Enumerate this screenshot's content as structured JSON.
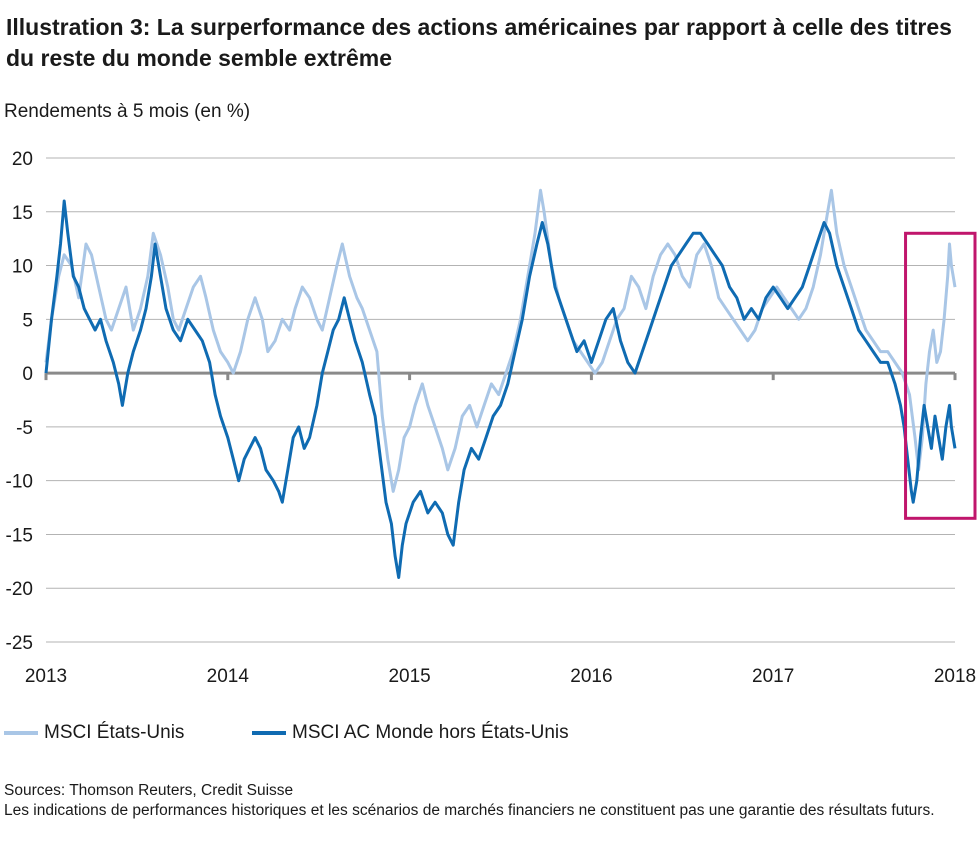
{
  "title": "Illustration 3: La surperformance des actions américaines par rapport à celle des titres du reste du monde semble extrême",
  "subtitle": "Rendements à 5 mois (en %)",
  "footer": {
    "sources": "Sources: Thomson Reuters, Credit Suisse",
    "disclaimer": "Les indications de performances historiques et les scénarios de marchés financiers ne constituent pas une garantie des résultats futurs."
  },
  "colors": {
    "us": "#a9c6e6",
    "world": "#0f6bb2",
    "highlight": "#c0166c",
    "grid": "#b3b3b3",
    "zero": "#8a8a8a"
  },
  "chart_data": {
    "type": "line",
    "title": "",
    "xlabel": "",
    "ylabel": "Rendements à 5 mois (en %)",
    "xlim": [
      2013.0,
      2018.0
    ],
    "ylim": [
      -25,
      20
    ],
    "y_ticks": [
      20,
      15,
      10,
      5,
      0,
      -5,
      -10,
      -15,
      -20,
      -25
    ],
    "x_ticks": [
      "2013",
      "2014",
      "2015",
      "2016",
      "2017",
      "2018"
    ],
    "grid": true,
    "legend": "bottom",
    "highlight_range": {
      "x": [
        2017.75,
        2018.0
      ],
      "y": [
        -13.5,
        13
      ]
    },
    "series": [
      {
        "name": "MSCI États-Unis",
        "color": "#a9c6e6",
        "points": [
          [
            2013.0,
            1
          ],
          [
            2013.03,
            5
          ],
          [
            2013.07,
            9
          ],
          [
            2013.1,
            11
          ],
          [
            2013.14,
            10
          ],
          [
            2013.18,
            7
          ],
          [
            2013.22,
            12
          ],
          [
            2013.25,
            11
          ],
          [
            2013.29,
            8
          ],
          [
            2013.33,
            5
          ],
          [
            2013.36,
            4
          ],
          [
            2013.4,
            6
          ],
          [
            2013.44,
            8
          ],
          [
            2013.48,
            4
          ],
          [
            2013.52,
            6
          ],
          [
            2013.56,
            9
          ],
          [
            2013.59,
            13
          ],
          [
            2013.63,
            11
          ],
          [
            2013.67,
            8
          ],
          [
            2013.7,
            5
          ],
          [
            2013.73,
            4
          ],
          [
            2013.77,
            6
          ],
          [
            2013.81,
            8
          ],
          [
            2013.85,
            9
          ],
          [
            2013.88,
            7
          ],
          [
            2013.92,
            4
          ],
          [
            2013.96,
            2
          ],
          [
            2014.0,
            1
          ],
          [
            2014.03,
            0
          ],
          [
            2014.07,
            2
          ],
          [
            2014.11,
            5
          ],
          [
            2014.15,
            7
          ],
          [
            2014.19,
            5
          ],
          [
            2014.22,
            2
          ],
          [
            2014.26,
            3
          ],
          [
            2014.3,
            5
          ],
          [
            2014.34,
            4
          ],
          [
            2014.37,
            6
          ],
          [
            2014.41,
            8
          ],
          [
            2014.45,
            7
          ],
          [
            2014.49,
            5
          ],
          [
            2014.52,
            4
          ],
          [
            2014.56,
            7
          ],
          [
            2014.6,
            10
          ],
          [
            2014.63,
            12
          ],
          [
            2014.67,
            9
          ],
          [
            2014.71,
            7
          ],
          [
            2014.74,
            6
          ],
          [
            2014.78,
            4
          ],
          [
            2014.82,
            2
          ],
          [
            2014.85,
            -4
          ],
          [
            2014.88,
            -8
          ],
          [
            2014.91,
            -11
          ],
          [
            2014.94,
            -9
          ],
          [
            2014.97,
            -6
          ],
          [
            2015.0,
            -5
          ],
          [
            2015.03,
            -3
          ],
          [
            2015.07,
            -1
          ],
          [
            2015.1,
            -3
          ],
          [
            2015.14,
            -5
          ],
          [
            2015.18,
            -7
          ],
          [
            2015.21,
            -9
          ],
          [
            2015.25,
            -7
          ],
          [
            2015.29,
            -4
          ],
          [
            2015.33,
            -3
          ],
          [
            2015.37,
            -5
          ],
          [
            2015.41,
            -3
          ],
          [
            2015.45,
            -1
          ],
          [
            2015.49,
            -2
          ],
          [
            2015.53,
            0
          ],
          [
            2015.57,
            2
          ],
          [
            2015.61,
            5
          ],
          [
            2015.65,
            9
          ],
          [
            2015.69,
            13
          ],
          [
            2015.72,
            17
          ],
          [
            2015.74,
            15
          ],
          [
            2015.78,
            10
          ],
          [
            2015.82,
            7
          ],
          [
            2015.86,
            5
          ],
          [
            2015.9,
            3
          ],
          [
            2015.94,
            2
          ],
          [
            2015.98,
            1
          ],
          [
            2016.02,
            0
          ],
          [
            2016.06,
            1
          ],
          [
            2016.1,
            3
          ],
          [
            2016.14,
            5
          ],
          [
            2016.18,
            6
          ],
          [
            2016.22,
            9
          ],
          [
            2016.26,
            8
          ],
          [
            2016.3,
            6
          ],
          [
            2016.34,
            9
          ],
          [
            2016.38,
            11
          ],
          [
            2016.42,
            12
          ],
          [
            2016.46,
            11
          ],
          [
            2016.5,
            9
          ],
          [
            2016.54,
            8
          ],
          [
            2016.58,
            11
          ],
          [
            2016.62,
            12
          ],
          [
            2016.66,
            10
          ],
          [
            2016.7,
            7
          ],
          [
            2016.74,
            6
          ],
          [
            2016.78,
            5
          ],
          [
            2016.82,
            4
          ],
          [
            2016.86,
            3
          ],
          [
            2016.9,
            4
          ],
          [
            2016.94,
            6
          ],
          [
            2016.98,
            7
          ],
          [
            2017.02,
            8
          ],
          [
            2017.06,
            7
          ],
          [
            2017.1,
            6
          ],
          [
            2017.14,
            5
          ],
          [
            2017.18,
            6
          ],
          [
            2017.22,
            8
          ],
          [
            2017.26,
            11
          ],
          [
            2017.3,
            15
          ],
          [
            2017.32,
            17
          ],
          [
            2017.35,
            13
          ],
          [
            2017.39,
            10
          ],
          [
            2017.43,
            8
          ],
          [
            2017.47,
            6
          ],
          [
            2017.51,
            4
          ],
          [
            2017.55,
            3
          ],
          [
            2017.59,
            2
          ],
          [
            2017.63,
            2
          ],
          [
            2017.67,
            1
          ],
          [
            2017.71,
            0
          ],
          [
            2017.75,
            -2
          ],
          [
            2017.78,
            -6
          ],
          [
            2017.8,
            -9
          ],
          [
            2017.82,
            -6
          ],
          [
            2017.84,
            -1
          ],
          [
            2017.86,
            2
          ],
          [
            2017.88,
            4
          ],
          [
            2017.9,
            1
          ],
          [
            2017.92,
            2
          ],
          [
            2017.94,
            5
          ],
          [
            2017.96,
            9
          ],
          [
            2017.97,
            12
          ],
          [
            2017.98,
            10
          ],
          [
            2017.99,
            9
          ],
          [
            2018.0,
            8
          ]
        ]
      },
      {
        "name": "MSCI AC Monde hors États-Unis",
        "color": "#0f6bb2",
        "points": [
          [
            2013.0,
            0
          ],
          [
            2013.03,
            5
          ],
          [
            2013.06,
            9
          ],
          [
            2013.08,
            12
          ],
          [
            2013.1,
            16
          ],
          [
            2013.12,
            13
          ],
          [
            2013.15,
            9
          ],
          [
            2013.18,
            8
          ],
          [
            2013.21,
            6
          ],
          [
            2013.24,
            5
          ],
          [
            2013.27,
            4
          ],
          [
            2013.3,
            5
          ],
          [
            2013.33,
            3
          ],
          [
            2013.37,
            1
          ],
          [
            2013.4,
            -1
          ],
          [
            2013.42,
            -3
          ],
          [
            2013.45,
            0
          ],
          [
            2013.48,
            2
          ],
          [
            2013.52,
            4
          ],
          [
            2013.55,
            6
          ],
          [
            2013.58,
            9
          ],
          [
            2013.6,
            12
          ],
          [
            2013.63,
            9
          ],
          [
            2013.66,
            6
          ],
          [
            2013.7,
            4
          ],
          [
            2013.74,
            3
          ],
          [
            2013.78,
            5
          ],
          [
            2013.82,
            4
          ],
          [
            2013.86,
            3
          ],
          [
            2013.9,
            1
          ],
          [
            2013.93,
            -2
          ],
          [
            2013.96,
            -4
          ],
          [
            2014.0,
            -6
          ],
          [
            2014.03,
            -8
          ],
          [
            2014.06,
            -10
          ],
          [
            2014.09,
            -8
          ],
          [
            2014.12,
            -7
          ],
          [
            2014.15,
            -6
          ],
          [
            2014.18,
            -7
          ],
          [
            2014.21,
            -9
          ],
          [
            2014.25,
            -10
          ],
          [
            2014.28,
            -11
          ],
          [
            2014.3,
            -12
          ],
          [
            2014.33,
            -9
          ],
          [
            2014.36,
            -6
          ],
          [
            2014.39,
            -5
          ],
          [
            2014.42,
            -7
          ],
          [
            2014.45,
            -6
          ],
          [
            2014.49,
            -3
          ],
          [
            2014.52,
            0
          ],
          [
            2014.55,
            2
          ],
          [
            2014.58,
            4
          ],
          [
            2014.61,
            5
          ],
          [
            2014.64,
            7
          ],
          [
            2014.67,
            5
          ],
          [
            2014.7,
            3
          ],
          [
            2014.74,
            1
          ],
          [
            2014.78,
            -2
          ],
          [
            2014.81,
            -4
          ],
          [
            2014.84,
            -8
          ],
          [
            2014.87,
            -12
          ],
          [
            2014.9,
            -14
          ],
          [
            2014.92,
            -17
          ],
          [
            2014.94,
            -19
          ],
          [
            2014.96,
            -16
          ],
          [
            2014.98,
            -14
          ],
          [
            2015.02,
            -12
          ],
          [
            2015.06,
            -11
          ],
          [
            2015.1,
            -13
          ],
          [
            2015.14,
            -12
          ],
          [
            2015.18,
            -13
          ],
          [
            2015.21,
            -15
          ],
          [
            2015.24,
            -16
          ],
          [
            2015.27,
            -12
          ],
          [
            2015.3,
            -9
          ],
          [
            2015.34,
            -7
          ],
          [
            2015.38,
            -8
          ],
          [
            2015.42,
            -6
          ],
          [
            2015.46,
            -4
          ],
          [
            2015.5,
            -3
          ],
          [
            2015.54,
            -1
          ],
          [
            2015.58,
            2
          ],
          [
            2015.62,
            5
          ],
          [
            2015.66,
            9
          ],
          [
            2015.7,
            12
          ],
          [
            2015.73,
            14
          ],
          [
            2015.76,
            12
          ],
          [
            2015.8,
            8
          ],
          [
            2015.84,
            6
          ],
          [
            2015.88,
            4
          ],
          [
            2015.92,
            2
          ],
          [
            2015.96,
            3
          ],
          [
            2016.0,
            1
          ],
          [
            2016.04,
            3
          ],
          [
            2016.08,
            5
          ],
          [
            2016.12,
            6
          ],
          [
            2016.16,
            3
          ],
          [
            2016.2,
            1
          ],
          [
            2016.24,
            0
          ],
          [
            2016.28,
            2
          ],
          [
            2016.32,
            4
          ],
          [
            2016.36,
            6
          ],
          [
            2016.4,
            8
          ],
          [
            2016.44,
            10
          ],
          [
            2016.48,
            11
          ],
          [
            2016.52,
            12
          ],
          [
            2016.56,
            13
          ],
          [
            2016.6,
            13
          ],
          [
            2016.64,
            12
          ],
          [
            2016.68,
            11
          ],
          [
            2016.72,
            10
          ],
          [
            2016.76,
            8
          ],
          [
            2016.8,
            7
          ],
          [
            2016.84,
            5
          ],
          [
            2016.88,
            6
          ],
          [
            2016.92,
            5
          ],
          [
            2016.96,
            7
          ],
          [
            2017.0,
            8
          ],
          [
            2017.04,
            7
          ],
          [
            2017.08,
            6
          ],
          [
            2017.12,
            7
          ],
          [
            2017.16,
            8
          ],
          [
            2017.2,
            10
          ],
          [
            2017.24,
            12
          ],
          [
            2017.28,
            14
          ],
          [
            2017.31,
            13
          ],
          [
            2017.35,
            10
          ],
          [
            2017.39,
            8
          ],
          [
            2017.43,
            6
          ],
          [
            2017.47,
            4
          ],
          [
            2017.51,
            3
          ],
          [
            2017.55,
            2
          ],
          [
            2017.59,
            1
          ],
          [
            2017.63,
            1
          ],
          [
            2017.67,
            -1
          ],
          [
            2017.7,
            -3
          ],
          [
            2017.72,
            -5
          ],
          [
            2017.74,
            -8
          ],
          [
            2017.76,
            -11
          ],
          [
            2017.77,
            -12
          ],
          [
            2017.79,
            -10
          ],
          [
            2017.81,
            -6
          ],
          [
            2017.83,
            -3
          ],
          [
            2017.85,
            -5
          ],
          [
            2017.87,
            -7
          ],
          [
            2017.89,
            -4
          ],
          [
            2017.91,
            -6
          ],
          [
            2017.93,
            -8
          ],
          [
            2017.95,
            -5
          ],
          [
            2017.97,
            -3
          ],
          [
            2017.98,
            -5
          ],
          [
            2018.0,
            -7
          ]
        ]
      }
    ]
  }
}
